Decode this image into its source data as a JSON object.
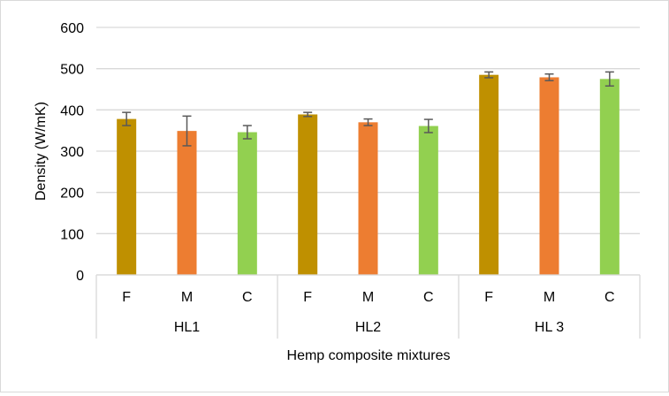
{
  "chart_data": {
    "type": "bar",
    "title": "",
    "xlabel": "Hemp composite mixtures",
    "ylabel": "Density (W/mK)",
    "ylim": [
      0,
      600
    ],
    "yticks": [
      "0",
      "100",
      "200",
      "300",
      "400",
      "500",
      "600"
    ],
    "grid": true,
    "groups": [
      {
        "label": "HL1",
        "bars": [
          {
            "label": "F",
            "value": 378,
            "error": 16
          },
          {
            "label": "M",
            "value": 349,
            "error": 36
          },
          {
            "label": "C",
            "value": 346,
            "error": 16
          }
        ]
      },
      {
        "label": "HL2",
        "bars": [
          {
            "label": "F",
            "value": 389,
            "error": 5
          },
          {
            "label": "M",
            "value": 370,
            "error": 8
          },
          {
            "label": "C",
            "value": 361,
            "error": 16
          }
        ]
      },
      {
        "label": "HL 3",
        "bars": [
          {
            "label": "F",
            "value": 485,
            "error": 7
          },
          {
            "label": "M",
            "value": 479,
            "error": 8
          },
          {
            "label": "C",
            "value": 475,
            "error": 17
          }
        ]
      }
    ],
    "colors": {
      "F": "#bf9000",
      "M": "#ed7d31",
      "C": "#92d050",
      "error_bar": "#595959",
      "grid": "#d9d9d9"
    }
  }
}
